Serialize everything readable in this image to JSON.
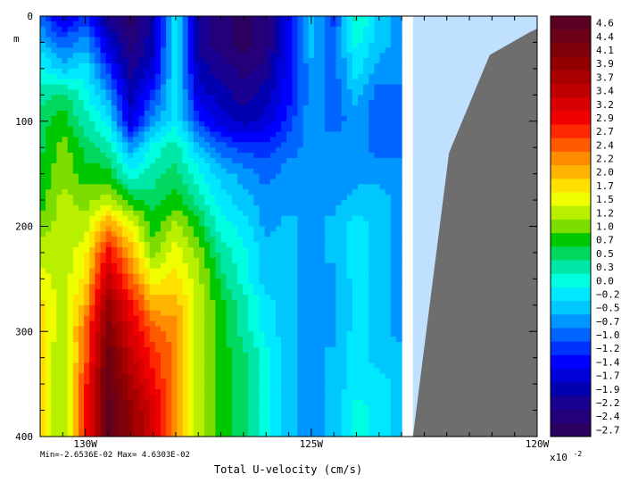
{
  "chart_data": {
    "type": "heatmap",
    "title": "",
    "xlabel": "Total U-velocity (cm/s)",
    "ylabel": "m",
    "x_ticks": [
      {
        "value": 130,
        "label": "130W"
      },
      {
        "value": 125,
        "label": "125W"
      },
      {
        "value": 120,
        "label": "120W"
      }
    ],
    "y_ticks": [
      {
        "value": 0,
        "label": "0"
      },
      {
        "value": 100,
        "label": "100"
      },
      {
        "value": 200,
        "label": "200"
      },
      {
        "value": 300,
        "label": "300"
      },
      {
        "value": 400,
        "label": "400"
      }
    ],
    "xlim_degW": [
      131.0,
      120.0
    ],
    "ylim_m": [
      0,
      400
    ],
    "y_inverted": true,
    "stats_text": "Min=-2.6536E-02  Max= 4.6303E-02",
    "colorbar": {
      "multiplier_label": "x10",
      "multiplier_exponent": "-2",
      "levels": [
        "4.6",
        "4.4",
        "4.1",
        "3.9",
        "3.7",
        "3.4",
        "3.2",
        "2.9",
        "2.7",
        "2.4",
        "2.2",
        "2.0",
        "1.7",
        "1.5",
        "1.2",
        "1.0",
        "0.7",
        "0.5",
        "0.3",
        "0.0",
        "-0.2",
        "-0.5",
        "-0.7",
        "-1.0",
        "-1.2",
        "-1.4",
        "-1.7",
        "-1.9",
        "-2.2",
        "-2.4",
        "-2.7"
      ],
      "colors": [
        "#5a0022",
        "#6b0016",
        "#7d000b",
        "#900000",
        "#a80000",
        "#c00000",
        "#d80000",
        "#f00000",
        "#ff2800",
        "#ff5a00",
        "#ff8c00",
        "#ffb400",
        "#ffe000",
        "#f0ff00",
        "#b8f000",
        "#7ddc00",
        "#00c800",
        "#00d860",
        "#00e8a8",
        "#00ffe0",
        "#00e8ff",
        "#00c8ff",
        "#0096ff",
        "#0064ff",
        "#0032ff",
        "#0000ff",
        "#0000d8",
        "#0000b0",
        "#1a0090",
        "#24007a",
        "#2a0060"
      ]
    },
    "masked_regions": [
      {
        "name": "no data",
        "color": "#c0e0ff",
        "x_start_degW": 122.75,
        "x_end_degW": 120.0,
        "depth_range_m": [
          0,
          400
        ]
      },
      {
        "name": "land / bathymetry",
        "color": "#6e6e6e",
        "outline": [
          [
            122.75,
            400
          ],
          [
            121.95,
            130
          ],
          [
            121.05,
            37
          ],
          [
            120.15,
            15
          ],
          [
            120.0,
            12
          ],
          [
            120.0,
            400
          ]
        ]
      }
    ],
    "field_samples": {
      "x_degW": [
        131.0,
        130.5,
        130.0,
        129.5,
        129.0,
        128.5,
        128.0,
        127.5,
        127.0,
        126.5,
        126.0,
        125.5,
        125.0,
        124.5,
        124.0,
        123.5,
        123.0
      ],
      "depth_m": [
        0,
        25,
        50,
        75,
        100,
        125,
        150,
        175,
        200,
        225,
        250,
        275,
        300,
        325,
        350,
        375,
        400
      ],
      "note": "values in units of 1e-2 cm/s, read approximately from the contour colors",
      "values": [
        [
          -1.0,
          -1.7,
          -1.2,
          -2.2,
          -2.7,
          -1.9,
          -0.2,
          -2.2,
          -2.4,
          -2.7,
          -2.4,
          -1.4,
          -0.5,
          -1.2,
          0.3,
          -0.5,
          -0.7
        ],
        [
          -0.5,
          -1.0,
          -0.7,
          -1.7,
          -2.4,
          -1.9,
          -0.2,
          -2.2,
          -2.4,
          -2.7,
          -2.4,
          -1.4,
          -0.5,
          -1.0,
          0.0,
          -0.5,
          -0.7
        ],
        [
          0.0,
          -0.5,
          -0.2,
          -1.2,
          -2.2,
          -1.7,
          -0.2,
          -1.9,
          -2.2,
          -2.4,
          -2.2,
          -1.4,
          -0.7,
          -1.0,
          -0.2,
          -0.7,
          -0.7
        ],
        [
          0.3,
          0.5,
          0.0,
          -0.7,
          -1.9,
          -1.2,
          -0.2,
          -1.7,
          -1.9,
          -2.2,
          -1.9,
          -1.4,
          -0.7,
          -1.0,
          -0.5,
          -1.0,
          -1.0
        ],
        [
          0.5,
          0.7,
          0.3,
          -0.2,
          -1.7,
          -0.7,
          -0.2,
          -1.2,
          -1.7,
          -1.9,
          -1.7,
          -1.2,
          -0.7,
          -1.0,
          -0.7,
          -1.0,
          -1.0
        ],
        [
          0.5,
          1.0,
          0.5,
          0.3,
          -0.7,
          0.0,
          0.3,
          -0.5,
          -1.0,
          -1.2,
          -1.2,
          -1.0,
          -0.7,
          -0.7,
          -0.7,
          -1.0,
          -1.0
        ],
        [
          0.7,
          1.0,
          0.7,
          0.7,
          0.0,
          0.3,
          0.5,
          0.0,
          -0.5,
          -0.7,
          -1.0,
          -0.7,
          -0.7,
          -0.7,
          -0.7,
          -0.7,
          -0.7
        ],
        [
          0.7,
          1.2,
          1.0,
          1.2,
          0.7,
          0.5,
          0.7,
          0.3,
          -0.2,
          -0.5,
          -0.7,
          -0.7,
          -0.7,
          -0.7,
          -0.5,
          -0.5,
          -0.7
        ],
        [
          1.0,
          1.2,
          1.2,
          2.2,
          1.5,
          0.7,
          1.2,
          0.7,
          0.0,
          -0.2,
          -0.7,
          -0.5,
          -0.7,
          -0.5,
          -0.2,
          -0.5,
          -0.7
        ],
        [
          1.2,
          1.2,
          1.5,
          2.9,
          2.0,
          1.0,
          1.5,
          1.0,
          0.3,
          0.0,
          -0.5,
          -0.5,
          -0.7,
          -0.5,
          -0.2,
          -0.5,
          -0.7
        ],
        [
          1.5,
          1.2,
          1.7,
          3.4,
          2.4,
          1.5,
          1.7,
          1.2,
          0.5,
          0.0,
          -0.5,
          -0.5,
          -0.7,
          -0.7,
          -0.2,
          -0.5,
          -0.7
        ],
        [
          1.7,
          1.2,
          2.0,
          3.9,
          2.9,
          2.0,
          2.0,
          1.2,
          0.7,
          0.3,
          -0.2,
          -0.5,
          -0.7,
          -0.7,
          -0.2,
          -0.5,
          -0.7
        ],
        [
          1.7,
          1.2,
          2.4,
          4.1,
          3.2,
          2.4,
          2.2,
          1.2,
          0.7,
          0.3,
          -0.2,
          -0.5,
          -0.7,
          -0.7,
          -0.2,
          -0.5,
          -0.7
        ],
        [
          1.7,
          1.0,
          2.4,
          4.4,
          3.4,
          2.7,
          2.2,
          1.2,
          0.7,
          0.5,
          0.0,
          -0.5,
          -0.7,
          -0.5,
          -0.2,
          -0.5,
          -0.5
        ],
        [
          1.7,
          1.0,
          2.7,
          4.4,
          3.7,
          2.9,
          2.2,
          1.2,
          0.7,
          0.5,
          0.0,
          -0.5,
          -0.7,
          -0.5,
          -0.2,
          -0.2,
          -0.5
        ],
        [
          1.7,
          1.0,
          2.7,
          4.6,
          3.9,
          3.2,
          2.2,
          1.2,
          0.7,
          0.5,
          0.0,
          -0.5,
          -0.7,
          -0.5,
          0.0,
          -0.2,
          -0.5
        ],
        [
          1.7,
          1.0,
          2.7,
          4.6,
          3.9,
          3.2,
          2.2,
          1.2,
          0.7,
          0.5,
          0.0,
          -0.5,
          -0.7,
          -0.5,
          0.0,
          -0.2,
          -0.5
        ]
      ]
    }
  }
}
